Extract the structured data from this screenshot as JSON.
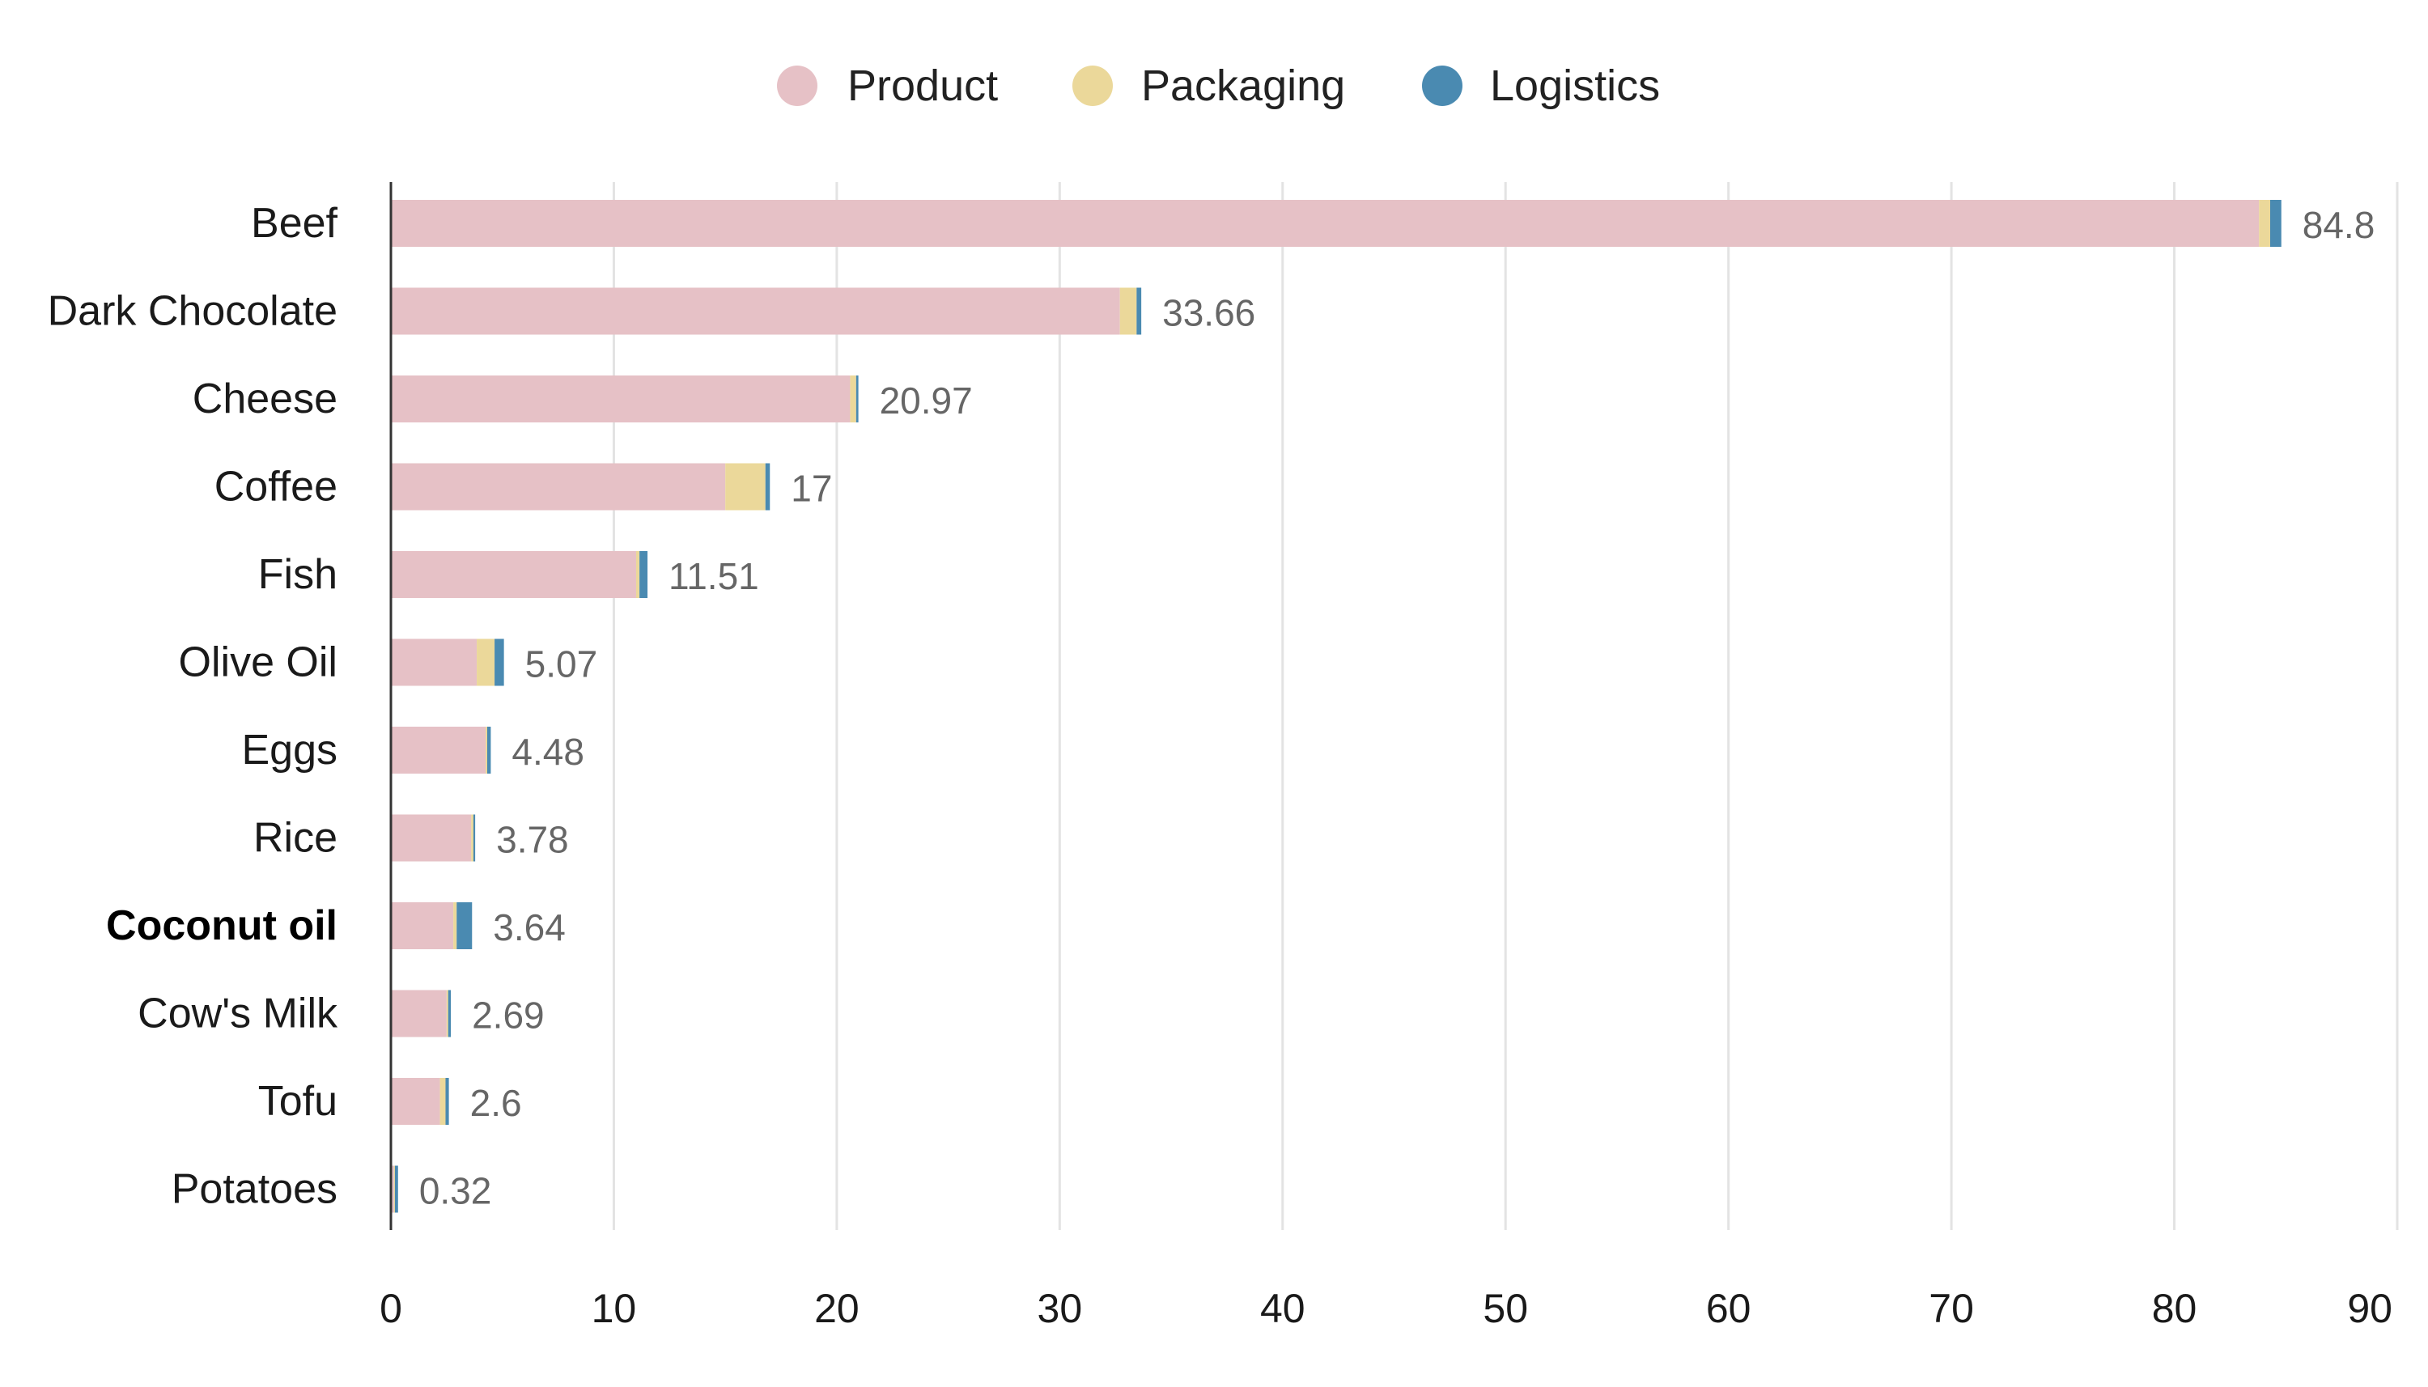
{
  "chart_data": {
    "type": "bar",
    "orientation": "horizontal",
    "stacked": true,
    "title": "",
    "xlabel": "",
    "ylabel": "",
    "xlim": [
      0,
      90
    ],
    "grid": true,
    "legend_position": "top-center",
    "x_ticks": [
      "0",
      "10",
      "20",
      "30",
      "40",
      "50",
      "60",
      "70",
      "80",
      "90"
    ],
    "categories": [
      "Beef",
      "Dark Chocolate",
      "Cheese",
      "Coffee",
      "Fish",
      "Olive Oil",
      "Eggs",
      "Rice",
      "Coconut oil",
      "Cow's Milk",
      "Tofu",
      "Potatoes"
    ],
    "highlighted_category": "Coconut oil",
    "series": [
      {
        "name": "Product",
        "color": "#e6c1c6",
        "values": [
          83.8,
          32.7,
          20.6,
          15.0,
          11.0,
          3.85,
          4.25,
          3.6,
          2.8,
          2.5,
          2.2,
          0.14
        ]
      },
      {
        "name": "Packaging",
        "color": "#ebd89a",
        "values": [
          0.5,
          0.75,
          0.27,
          1.8,
          0.15,
          0.8,
          0.07,
          0.1,
          0.15,
          0.07,
          0.25,
          0.04
        ]
      },
      {
        "name": "Logistics",
        "color": "#4a8ab1",
        "values": [
          0.5,
          0.21,
          0.1,
          0.2,
          0.36,
          0.42,
          0.16,
          0.08,
          0.69,
          0.12,
          0.15,
          0.14
        ]
      }
    ],
    "totals": [
      "84.8",
      "33.66",
      "20.97",
      "17",
      "11.51",
      "5.07",
      "4.48",
      "3.78",
      "3.64",
      "2.69",
      "2.6",
      "0.32"
    ]
  }
}
